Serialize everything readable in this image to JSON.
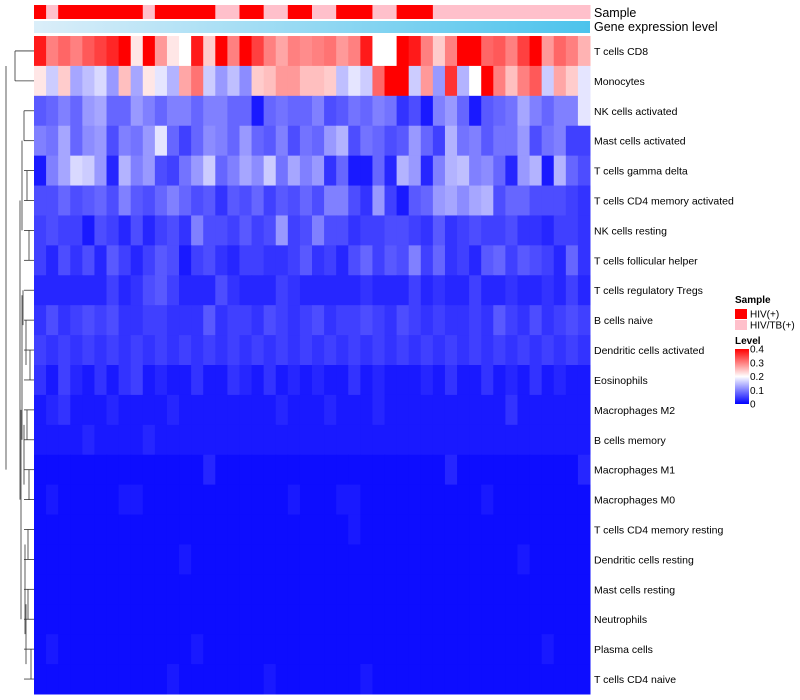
{
  "chart_data": {
    "type": "heatmap",
    "n_samples": 46,
    "annotations": {
      "sample_label": "Sample",
      "expression_label": "Gene expression level",
      "sample_groups": [
        "HIV(+)",
        "HIV/TB(+)",
        "HIV(+)",
        "HIV(+)",
        "HIV(+)",
        "HIV(+)",
        "HIV(+)",
        "HIV(+)",
        "HIV(+)",
        "HIV/TB(+)",
        "HIV(+)",
        "HIV(+)",
        "HIV(+)",
        "HIV(+)",
        "HIV(+)",
        "HIV/TB(+)",
        "HIV/TB(+)",
        "HIV(+)",
        "HIV(+)",
        "HIV/TB(+)",
        "HIV/TB(+)",
        "HIV(+)",
        "HIV(+)",
        "HIV/TB(+)",
        "HIV/TB(+)",
        "HIV(+)",
        "HIV(+)",
        "HIV(+)",
        "HIV/TB(+)",
        "HIV/TB(+)",
        "HIV(+)",
        "HIV(+)",
        "HIV(+)",
        "HIV/TB(+)",
        "HIV/TB(+)",
        "HIV/TB(+)",
        "HIV/TB(+)",
        "HIV/TB(+)",
        "HIV/TB(+)",
        "HIV/TB(+)",
        "HIV/TB(+)",
        "HIV/TB(+)",
        "HIV/TB(+)",
        "HIV/TB(+)",
        "HIV/TB(+)",
        "HIV/TB(+)"
      ],
      "expression_gradient": [
        "#dbeef9",
        "#4cc3ec"
      ]
    },
    "rows": [
      {
        "name": "T cells CD8",
        "values": [
          0.38,
          0.3,
          0.32,
          0.3,
          0.33,
          0.35,
          0.37,
          0.4,
          0.22,
          0.4,
          0.28,
          0.22,
          0.2,
          0.38,
          0.24,
          0.4,
          0.3,
          0.4,
          0.35,
          0.3,
          0.27,
          0.3,
          0.29,
          0.3,
          0.31,
          0.28,
          0.3,
          0.38,
          0.2,
          0.2,
          0.4,
          0.38,
          0.3,
          0.24,
          0.3,
          0.4,
          0.4,
          0.32,
          0.33,
          0.3,
          0.35,
          0.4,
          0.28,
          0.32,
          0.3,
          0.26
        ]
      },
      {
        "name": "Monocytes",
        "values": [
          0.22,
          0.16,
          0.24,
          0.13,
          0.15,
          0.17,
          0.12,
          0.25,
          0.13,
          0.22,
          0.18,
          0.14,
          0.27,
          0.31,
          0.16,
          0.12,
          0.15,
          0.11,
          0.24,
          0.25,
          0.28,
          0.28,
          0.25,
          0.25,
          0.24,
          0.15,
          0.18,
          0.16,
          0.32,
          0.4,
          0.4,
          0.16,
          0.28,
          0.12,
          0.36,
          0.14,
          0.2,
          0.4,
          0.3,
          0.25,
          0.3,
          0.33,
          0.16,
          0.27,
          0.24,
          0.18
        ]
      },
      {
        "name": "NK cells activated",
        "values": [
          0.07,
          0.08,
          0.1,
          0.08,
          0.12,
          0.13,
          0.08,
          0.08,
          0.12,
          0.1,
          0.08,
          0.1,
          0.1,
          0.08,
          0.1,
          0.1,
          0.08,
          0.08,
          0.02,
          0.08,
          0.09,
          0.08,
          0.08,
          0.1,
          0.06,
          0.07,
          0.09,
          0.08,
          0.1,
          0.09,
          0.04,
          0.06,
          0.02,
          0.1,
          0.12,
          0.08,
          0.02,
          0.07,
          0.08,
          0.09,
          0.13,
          0.1,
          0.08,
          0.1,
          0.1,
          0.18
        ]
      },
      {
        "name": "Mast cells activated",
        "values": [
          0.1,
          0.09,
          0.13,
          0.08,
          0.11,
          0.12,
          0.06,
          0.1,
          0.09,
          0.12,
          0.18,
          0.08,
          0.05,
          0.08,
          0.11,
          0.1,
          0.08,
          0.12,
          0.08,
          0.07,
          0.1,
          0.06,
          0.09,
          0.08,
          0.12,
          0.14,
          0.06,
          0.09,
          0.08,
          0.06,
          0.07,
          0.12,
          0.08,
          0.05,
          0.14,
          0.09,
          0.1,
          0.07,
          0.09,
          0.09,
          0.12,
          0.06,
          0.09,
          0.1,
          0.05,
          0.05
        ]
      },
      {
        "name": "T cells gamma delta",
        "values": [
          0.02,
          0.1,
          0.13,
          0.17,
          0.16,
          0.12,
          0.03,
          0.14,
          0.1,
          0.12,
          0.06,
          0.05,
          0.09,
          0.12,
          0.16,
          0.08,
          0.1,
          0.13,
          0.11,
          0.16,
          0.09,
          0.13,
          0.1,
          0.12,
          0.04,
          0.08,
          0.02,
          0.02,
          0.08,
          0.03,
          0.14,
          0.12,
          0.03,
          0.1,
          0.14,
          0.15,
          0.1,
          0.11,
          0.08,
          0.03,
          0.12,
          0.14,
          0.02,
          0.14,
          0.08,
          0.06
        ]
      },
      {
        "name": "T cells CD4 memory activated",
        "values": [
          0.06,
          0.06,
          0.08,
          0.06,
          0.07,
          0.08,
          0.06,
          0.1,
          0.07,
          0.06,
          0.08,
          0.1,
          0.08,
          0.06,
          0.07,
          0.04,
          0.07,
          0.06,
          0.08,
          0.05,
          0.07,
          0.06,
          0.08,
          0.06,
          0.1,
          0.1,
          0.06,
          0.04,
          0.12,
          0.05,
          0.02,
          0.07,
          0.08,
          0.12,
          0.13,
          0.11,
          0.13,
          0.14,
          0.06,
          0.08,
          0.08,
          0.06,
          0.06,
          0.06,
          0.05,
          0.04
        ]
      },
      {
        "name": "NK cells resting",
        "values": [
          0.05,
          0.06,
          0.05,
          0.05,
          0.02,
          0.06,
          0.05,
          0.03,
          0.06,
          0.03,
          0.05,
          0.06,
          0.04,
          0.1,
          0.06,
          0.06,
          0.05,
          0.07,
          0.05,
          0.06,
          0.12,
          0.05,
          0.06,
          0.1,
          0.06,
          0.06,
          0.04,
          0.05,
          0.05,
          0.06,
          0.06,
          0.05,
          0.04,
          0.07,
          0.04,
          0.05,
          0.06,
          0.05,
          0.05,
          0.06,
          0.04,
          0.04,
          0.03,
          0.05,
          0.05,
          0.04
        ]
      },
      {
        "name": "T cells follicular helper",
        "values": [
          0.05,
          0.03,
          0.06,
          0.04,
          0.06,
          0.03,
          0.07,
          0.05,
          0.03,
          0.05,
          0.07,
          0.06,
          0.02,
          0.05,
          0.06,
          0.04,
          0.03,
          0.05,
          0.05,
          0.04,
          0.04,
          0.05,
          0.07,
          0.04,
          0.05,
          0.03,
          0.06,
          0.08,
          0.05,
          0.07,
          0.06,
          0.1,
          0.05,
          0.08,
          0.04,
          0.05,
          0.03,
          0.07,
          0.08,
          0.05,
          0.07,
          0.06,
          0.05,
          0.03,
          0.08,
          0.04
        ]
      },
      {
        "name": "T cells regulatory  Tregs",
        "values": [
          0.03,
          0.03,
          0.03,
          0.03,
          0.03,
          0.03,
          0.05,
          0.03,
          0.04,
          0.06,
          0.07,
          0.05,
          0.03,
          0.03,
          0.03,
          0.06,
          0.04,
          0.03,
          0.03,
          0.03,
          0.05,
          0.04,
          0.03,
          0.03,
          0.03,
          0.03,
          0.03,
          0.04,
          0.03,
          0.03,
          0.03,
          0.05,
          0.03,
          0.04,
          0.03,
          0.03,
          0.05,
          0.03,
          0.03,
          0.04,
          0.03,
          0.03,
          0.04,
          0.03,
          0.05,
          0.03
        ]
      },
      {
        "name": "B cells naive",
        "values": [
          0.04,
          0.06,
          0.04,
          0.05,
          0.06,
          0.05,
          0.06,
          0.04,
          0.04,
          0.05,
          0.05,
          0.04,
          0.04,
          0.04,
          0.07,
          0.04,
          0.05,
          0.05,
          0.04,
          0.06,
          0.05,
          0.04,
          0.05,
          0.06,
          0.04,
          0.05,
          0.05,
          0.06,
          0.05,
          0.04,
          0.06,
          0.05,
          0.04,
          0.05,
          0.04,
          0.04,
          0.05,
          0.04,
          0.07,
          0.05,
          0.04,
          0.06,
          0.04,
          0.05,
          0.06,
          0.05
        ]
      },
      {
        "name": "Dendritic cells activated",
        "values": [
          0.05,
          0.04,
          0.05,
          0.04,
          0.05,
          0.04,
          0.05,
          0.04,
          0.05,
          0.04,
          0.05,
          0.04,
          0.05,
          0.04,
          0.05,
          0.04,
          0.05,
          0.04,
          0.05,
          0.04,
          0.05,
          0.04,
          0.05,
          0.04,
          0.05,
          0.04,
          0.05,
          0.04,
          0.05,
          0.04,
          0.05,
          0.04,
          0.05,
          0.04,
          0.05,
          0.04,
          0.05,
          0.04,
          0.05,
          0.04,
          0.05,
          0.04,
          0.05,
          0.04,
          0.05,
          0.04
        ]
      },
      {
        "name": "Eosinophils",
        "values": [
          0.04,
          0.02,
          0.05,
          0.03,
          0.02,
          0.04,
          0.02,
          0.04,
          0.05,
          0.02,
          0.03,
          0.02,
          0.02,
          0.04,
          0.02,
          0.02,
          0.04,
          0.03,
          0.02,
          0.04,
          0.02,
          0.03,
          0.02,
          0.03,
          0.02,
          0.02,
          0.04,
          0.02,
          0.03,
          0.02,
          0.02,
          0.02,
          0.03,
          0.02,
          0.04,
          0.02,
          0.02,
          0.04,
          0.02,
          0.03,
          0.02,
          0.04,
          0.02,
          0.03,
          0.02,
          0.02
        ]
      },
      {
        "name": "Macrophages M2",
        "values": [
          0.02,
          0.03,
          0.04,
          0.02,
          0.02,
          0.02,
          0.03,
          0.02,
          0.02,
          0.02,
          0.02,
          0.03,
          0.02,
          0.02,
          0.02,
          0.02,
          0.02,
          0.02,
          0.02,
          0.02,
          0.03,
          0.02,
          0.02,
          0.02,
          0.03,
          0.02,
          0.02,
          0.02,
          0.03,
          0.02,
          0.02,
          0.02,
          0.02,
          0.02,
          0.02,
          0.02,
          0.02,
          0.02,
          0.02,
          0.04,
          0.02,
          0.02,
          0.02,
          0.02,
          0.02,
          0.02
        ]
      },
      {
        "name": "B cells memory",
        "values": [
          0.02,
          0.02,
          0.02,
          0.02,
          0.03,
          0.02,
          0.02,
          0.02,
          0.02,
          0.03,
          0.02,
          0.02,
          0.02,
          0.02,
          0.02,
          0.02,
          0.02,
          0.02,
          0.02,
          0.02,
          0.02,
          0.02,
          0.02,
          0.02,
          0.02,
          0.02,
          0.02,
          0.02,
          0.02,
          0.02,
          0.02,
          0.02,
          0.02,
          0.02,
          0.02,
          0.02,
          0.02,
          0.02,
          0.02,
          0.02,
          0.02,
          0.02,
          0.02,
          0.02,
          0.02,
          0.02
        ]
      },
      {
        "name": "Macrophages M1",
        "values": [
          0.01,
          0.01,
          0.01,
          0.01,
          0.01,
          0.01,
          0.01,
          0.01,
          0.01,
          0.01,
          0.01,
          0.01,
          0.01,
          0.01,
          0.03,
          0.01,
          0.01,
          0.01,
          0.01,
          0.01,
          0.01,
          0.01,
          0.01,
          0.01,
          0.01,
          0.01,
          0.01,
          0.01,
          0.01,
          0.01,
          0.01,
          0.01,
          0.01,
          0.01,
          0.03,
          0.01,
          0.01,
          0.01,
          0.01,
          0.01,
          0.01,
          0.01,
          0.01,
          0.01,
          0.01,
          0.03
        ]
      },
      {
        "name": "Macrophages M0",
        "values": [
          0.01,
          0.02,
          0.01,
          0.01,
          0.01,
          0.01,
          0.01,
          0.02,
          0.02,
          0.01,
          0.01,
          0.01,
          0.01,
          0.01,
          0.01,
          0.01,
          0.01,
          0.01,
          0.01,
          0.01,
          0.01,
          0.02,
          0.01,
          0.01,
          0.01,
          0.02,
          0.02,
          0.01,
          0.01,
          0.01,
          0.01,
          0.01,
          0.01,
          0.01,
          0.01,
          0.01,
          0.01,
          0.02,
          0.01,
          0.01,
          0.01,
          0.01,
          0.01,
          0.01,
          0.01,
          0.01
        ]
      },
      {
        "name": "T cells CD4 memory resting",
        "values": [
          0.01,
          0.01,
          0.01,
          0.01,
          0.01,
          0.01,
          0.01,
          0.01,
          0.01,
          0.01,
          0.01,
          0.01,
          0.01,
          0.01,
          0.01,
          0.01,
          0.01,
          0.01,
          0.01,
          0.01,
          0.01,
          0.01,
          0.01,
          0.01,
          0.01,
          0.01,
          0.02,
          0.01,
          0.01,
          0.01,
          0.01,
          0.01,
          0.01,
          0.01,
          0.01,
          0.01,
          0.01,
          0.01,
          0.01,
          0.01,
          0.01,
          0.01,
          0.01,
          0.01,
          0.01,
          0.01
        ]
      },
      {
        "name": "Dendritic cells resting",
        "values": [
          0.01,
          0.01,
          0.01,
          0.01,
          0.01,
          0.01,
          0.01,
          0.01,
          0.01,
          0.01,
          0.01,
          0.01,
          0.02,
          0.01,
          0.01,
          0.01,
          0.01,
          0.01,
          0.01,
          0.01,
          0.01,
          0.01,
          0.01,
          0.01,
          0.01,
          0.01,
          0.01,
          0.01,
          0.01,
          0.01,
          0.01,
          0.01,
          0.01,
          0.01,
          0.01,
          0.01,
          0.01,
          0.01,
          0.01,
          0.01,
          0.02,
          0.01,
          0.01,
          0.01,
          0.01,
          0.01
        ]
      },
      {
        "name": "Mast cells resting",
        "values": [
          0.01,
          0.01,
          0.01,
          0.01,
          0.01,
          0.01,
          0.01,
          0.01,
          0.01,
          0.01,
          0.01,
          0.01,
          0.01,
          0.01,
          0.01,
          0.01,
          0.01,
          0.01,
          0.01,
          0.01,
          0.01,
          0.01,
          0.01,
          0.01,
          0.01,
          0.01,
          0.01,
          0.01,
          0.01,
          0.01,
          0.01,
          0.01,
          0.01,
          0.01,
          0.01,
          0.01,
          0.01,
          0.01,
          0.01,
          0.01,
          0.01,
          0.01,
          0.01,
          0.01,
          0.01,
          0.01
        ]
      },
      {
        "name": "Neutrophils",
        "values": [
          0.01,
          0.01,
          0.01,
          0.01,
          0.01,
          0.01,
          0.01,
          0.01,
          0.01,
          0.01,
          0.01,
          0.01,
          0.01,
          0.01,
          0.01,
          0.01,
          0.01,
          0.01,
          0.01,
          0.01,
          0.01,
          0.01,
          0.01,
          0.01,
          0.01,
          0.01,
          0.01,
          0.01,
          0.01,
          0.01,
          0.01,
          0.01,
          0.01,
          0.01,
          0.01,
          0.01,
          0.01,
          0.01,
          0.01,
          0.01,
          0.01,
          0.01,
          0.01,
          0.01,
          0.01,
          0.01
        ]
      },
      {
        "name": "Plasma cells",
        "values": [
          0.01,
          0.02,
          0.01,
          0.01,
          0.01,
          0.01,
          0.01,
          0.01,
          0.01,
          0.01,
          0.01,
          0.01,
          0.01,
          0.02,
          0.01,
          0.01,
          0.01,
          0.01,
          0.01,
          0.01,
          0.01,
          0.01,
          0.01,
          0.01,
          0.01,
          0.01,
          0.01,
          0.01,
          0.01,
          0.01,
          0.01,
          0.01,
          0.01,
          0.01,
          0.01,
          0.01,
          0.01,
          0.01,
          0.01,
          0.01,
          0.01,
          0.01,
          0.02,
          0.01,
          0.01,
          0.01
        ]
      },
      {
        "name": "T cells CD4 naive",
        "values": [
          0.01,
          0.01,
          0.01,
          0.01,
          0.01,
          0.01,
          0.01,
          0.01,
          0.01,
          0.01,
          0.01,
          0.02,
          0.01,
          0.01,
          0.01,
          0.01,
          0.01,
          0.01,
          0.01,
          0.02,
          0.01,
          0.01,
          0.01,
          0.01,
          0.01,
          0.01,
          0.01,
          0.02,
          0.01,
          0.01,
          0.01,
          0.01,
          0.01,
          0.01,
          0.01,
          0.01,
          0.01,
          0.01,
          0.01,
          0.01,
          0.01,
          0.01,
          0.01,
          0.01,
          0.01,
          0.01
        ]
      }
    ],
    "legend": {
      "sample_title": "Sample",
      "sample_entries": [
        {
          "label": "HIV(+)",
          "color": "#ff0000"
        },
        {
          "label": "HIV/TB(+)",
          "color": "#ffc0cb"
        }
      ],
      "level_title": "Level",
      "level_ticks": [
        "0.4",
        "0.3",
        "0.2",
        "0.1",
        "0"
      ],
      "level_range": [
        0,
        0.4
      ],
      "level_colors": [
        "#0000ff",
        "#ffffff",
        "#ff0000"
      ],
      "placement": "right"
    },
    "dendrogram": "row clustering tree on left"
  }
}
